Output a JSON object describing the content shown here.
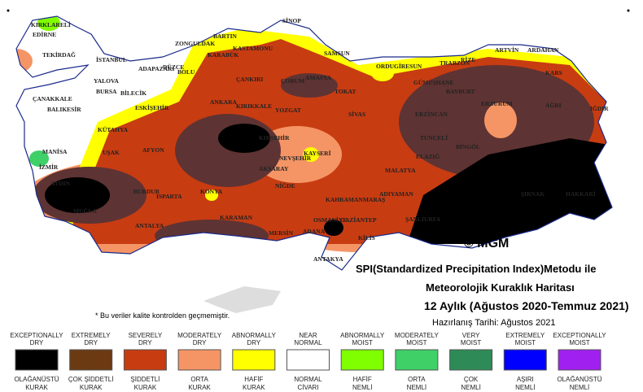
{
  "map": {
    "cities": [
      "KIRKLARELİ",
      "EDİRNE",
      "TEKİRDAĞ",
      "İSTANBUL",
      "ÇANAKKALE",
      "BALIKESİR",
      "BURSA",
      "YALOVA",
      "BİLECİK",
      "ADAPAZARI",
      "DÜZCE",
      "BOLU",
      "ZONGULDAK",
      "BARTIN",
      "KARABÜK",
      "KASTAMONU",
      "SİNOP",
      "SAMSUN",
      "ORDU",
      "GİRESUN",
      "TRABZON",
      "RİZE",
      "ARTVİN",
      "ARDAHAN",
      "KARS",
      "IĞDIR",
      "AĞRI",
      "ERZURUM",
      "BAYBURT",
      "GÜMÜŞHANE",
      "ERZİNCAN",
      "TOKAT",
      "AMASYA",
      "ÇORUM",
      "ÇANKIRI",
      "KIRIKKALE",
      "ANKARA",
      "YOZGAT",
      "SİVAS",
      "ESKİŞEHİR",
      "KÜTAHYA",
      "MANİSA",
      "İZMİR",
      "UŞAK",
      "AFYON",
      "AYDIN",
      "MUĞLA",
      "BURDUR",
      "ISPARTA",
      "KONYA",
      "ANTALYA",
      "KARAMAN",
      "AKSARAY",
      "NEVŞEHİR",
      "KIRŞEHİR",
      "KAYSERİ",
      "NİĞDE",
      "MERSİN",
      "ADANA",
      "OSMANİYE",
      "GAZİANTEP",
      "KİLİS",
      "ANTAKYA",
      "KAHRAMANMARAŞ",
      "ADIYAMAN",
      "MALATYA",
      "ELAZIĞ",
      "TUNCELİ",
      "BİNGÖL",
      "ŞANLIURFA",
      "ŞIRNAK",
      "HAKKARİ"
    ],
    "copyright": "© MGM",
    "note": "* Bu veriler kalite kontrolden geçmemiştir."
  },
  "title": {
    "line1": "SPI(Standardized Precipitation Index)Metodu ile",
    "line2": "Meteorolojik Kuraklık Haritası",
    "line3": "12 Aylık (Ağustos 2020-Temmuz 2021)",
    "date": "Hazırlanış Tarihi: Ağustos 2021"
  },
  "legend": [
    {
      "en": [
        "EXCEPTIONALLY",
        "DRY"
      ],
      "tr": [
        "OLAĞANÜSTÜ",
        "KURAK"
      ],
      "color": "#000000"
    },
    {
      "en": [
        "EXTREMELY",
        "DRY"
      ],
      "tr": [
        "ÇOK ŞİDDETLİ",
        "KURAK"
      ],
      "color": "#6b3a12"
    },
    {
      "en": [
        "SEVERELY",
        "DRY"
      ],
      "tr": [
        "ŞİDDETLİ",
        "KURAK"
      ],
      "color": "#c83c12"
    },
    {
      "en": [
        "MODERATELY",
        "DRY"
      ],
      "tr": [
        "ORTA",
        "KURAK"
      ],
      "color": "#f59565"
    },
    {
      "en": [
        "ABNORMALLY",
        "DRY"
      ],
      "tr": [
        "HAFİF",
        "KURAK"
      ],
      "color": "#ffff00"
    },
    {
      "en": [
        "NEAR",
        "NORMAL"
      ],
      "tr": [
        "NORMAL",
        "CİVARI"
      ],
      "color": "#ffffff"
    },
    {
      "en": [
        "ABNORMALLY",
        "MOIST"
      ],
      "tr": [
        "HAFİF",
        "NEMLİ"
      ],
      "color": "#80ff00"
    },
    {
      "en": [
        "MODERATELY",
        "MOIST"
      ],
      "tr": [
        "ORTA",
        "NEMLİ"
      ],
      "color": "#3fd068"
    },
    {
      "en": [
        "VERY",
        "MOIST"
      ],
      "tr": [
        "ÇOK",
        "NEMLİ"
      ],
      "color": "#2e8b57"
    },
    {
      "en": [
        "EXTREMELY",
        "MOIST"
      ],
      "tr": [
        "AŞIRI",
        "NEMLİ"
      ],
      "color": "#0000ff"
    },
    {
      "en": [
        "EXCEPTIONALLY",
        "MOIST"
      ],
      "tr": [
        "OLAĞANÜSTÜ",
        "NEMLİ"
      ],
      "color": "#a020f0"
    }
  ]
}
